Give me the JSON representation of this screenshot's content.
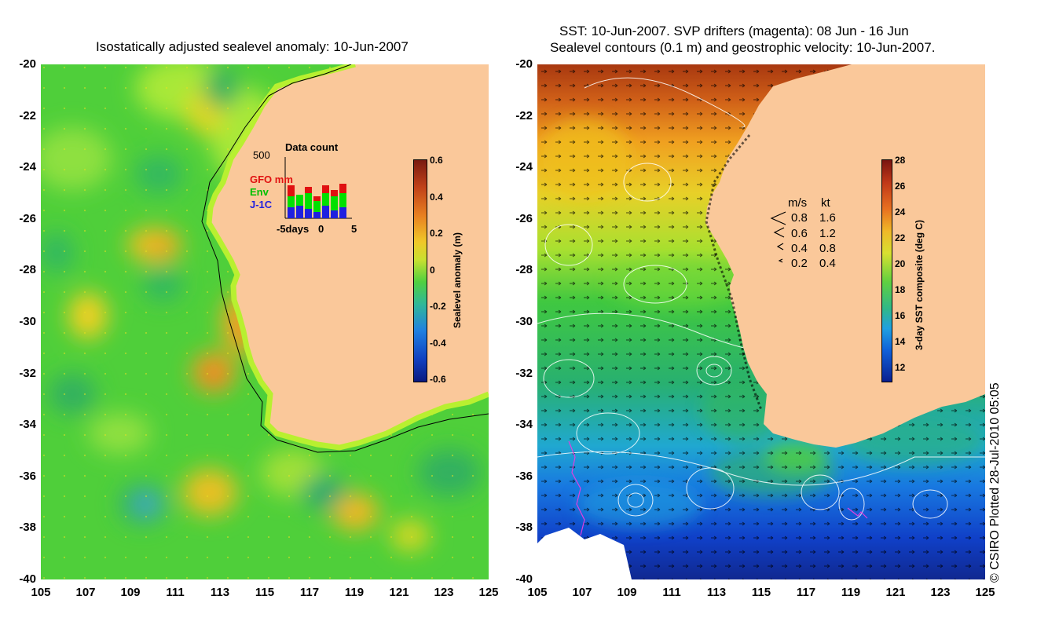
{
  "left_panel": {
    "title": "Isostatically adjusted sealevel anomaly: 10-Jun-2007",
    "y_ticks": [
      "-20",
      "-22",
      "-24",
      "-26",
      "-28",
      "-30",
      "-32",
      "-34",
      "-36",
      "-38",
      "-40"
    ],
    "x_ticks": [
      "105",
      "107",
      "109",
      "111",
      "113",
      "115",
      "117",
      "119",
      "121",
      "123",
      "125"
    ],
    "colorbar": {
      "label": "Sealevel anomaly (m)",
      "ticks": [
        "0.6",
        "0.4",
        "0.2",
        "0",
        "-0.2",
        "-0.4",
        "-0.6"
      ],
      "range": [
        -0.6,
        0.6
      ]
    },
    "data_count": {
      "title": "Data count",
      "max_label": "500",
      "x_left": "-5days",
      "x_zero": "0",
      "x_right": "5",
      "legend": {
        "gfo": "GFO mm",
        "env": "Env",
        "j1c": "J-1C"
      },
      "colors": {
        "gfo": "#e01010",
        "env": "#00e000",
        "j1c": "#2020e0"
      }
    }
  },
  "right_panel": {
    "title_line1": "SST: 10-Jun-2007. SVP drifters (magenta): 08 Jun - 16 Jun",
    "title_line2": "Sealevel contours (0.1 m) and geostrophic velocity: 10-Jun-2007.",
    "y_ticks": [
      "-20",
      "-22",
      "-24",
      "-26",
      "-28",
      "-30",
      "-32",
      "-34",
      "-36",
      "-38",
      "-40"
    ],
    "x_ticks": [
      "105",
      "107",
      "109",
      "111",
      "113",
      "115",
      "117",
      "119",
      "121",
      "123",
      "125"
    ],
    "colorbar": {
      "label": "3-day SST composite (deg C)",
      "ticks": [
        "28",
        "26",
        "24",
        "22",
        "20",
        "18",
        "16",
        "14",
        "12"
      ],
      "range": [
        11,
        28
      ]
    },
    "velocity_legend": {
      "header_ms": "m/s",
      "header_kt": "kt",
      "rows": [
        {
          "ms": "0.8",
          "kt": "1.6"
        },
        {
          "ms": "0.6",
          "kt": "1.2"
        },
        {
          "ms": "0.4",
          "kt": "0.8"
        },
        {
          "ms": "0.2",
          "kt": "0.4"
        }
      ]
    }
  },
  "copyright": "© CSIRO Plotted 28-Jul-2010 05:05",
  "colors": {
    "land": "#fac89a",
    "drifter": "#e040e0"
  }
}
